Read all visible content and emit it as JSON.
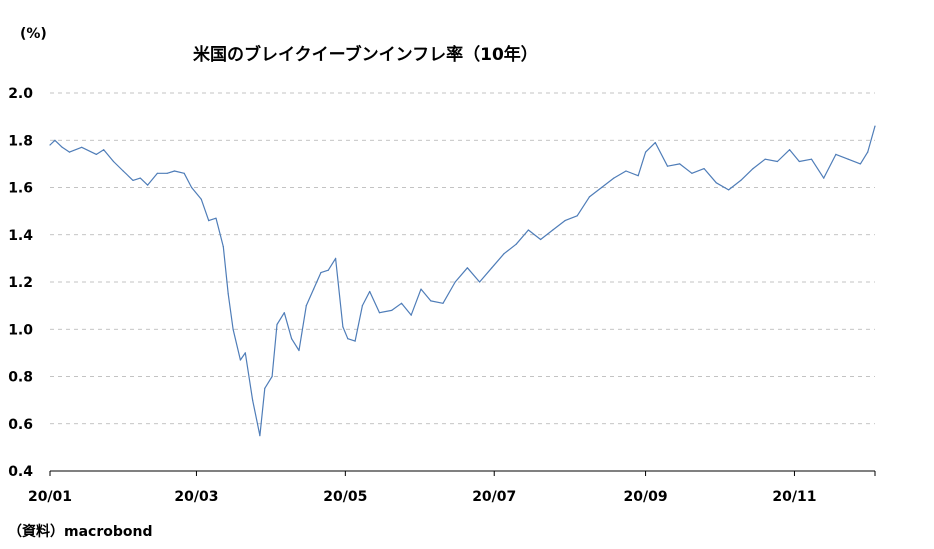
{
  "chart_data": {
    "type": "line",
    "title": "米国のブレイクイーブンインフレ率（10年）",
    "unit_label": "(%)",
    "source": "（資料）macrobond",
    "ylim": [
      0.4,
      2.0
    ],
    "y_ticks": [
      "0.4",
      "0.6",
      "0.8",
      "1.0",
      "1.2",
      "1.4",
      "1.6",
      "1.8",
      "2.0"
    ],
    "x_ticks": [
      "20/01",
      "20/03",
      "20/05",
      "20/07",
      "20/09",
      "20/11"
    ],
    "x_tick_dates": [
      "2020-01-01",
      "2020-03-01",
      "2020-05-01",
      "2020-07-01",
      "2020-09-01",
      "2020-11-01"
    ],
    "xlim": [
      "2020-01-01",
      "2020-12-04"
    ],
    "grid": true,
    "line_color": "#4f7db8",
    "series": [
      {
        "x": [
          "2020-01-01",
          "2020-01-03",
          "2020-01-06",
          "2020-01-09",
          "2020-01-14",
          "2020-01-20",
          "2020-01-23",
          "2020-01-27",
          "2020-01-31",
          "2020-02-04",
          "2020-02-07",
          "2020-02-10",
          "2020-02-14",
          "2020-02-18",
          "2020-02-21",
          "2020-02-25",
          "2020-02-28",
          "2020-03-03",
          "2020-03-06",
          "2020-03-09",
          "2020-03-12",
          "2020-03-14",
          "2020-03-16",
          "2020-03-19",
          "2020-03-21",
          "2020-03-24",
          "2020-03-27",
          "2020-03-29",
          "2020-04-01",
          "2020-04-03",
          "2020-04-06",
          "2020-04-09",
          "2020-04-12",
          "2020-04-15",
          "2020-04-18",
          "2020-04-21",
          "2020-04-24",
          "2020-04-27",
          "2020-04-30",
          "2020-05-02",
          "2020-05-05",
          "2020-05-08",
          "2020-05-11",
          "2020-05-15",
          "2020-05-20",
          "2020-05-24",
          "2020-05-28",
          "2020-06-01",
          "2020-06-05",
          "2020-06-10",
          "2020-06-15",
          "2020-06-20",
          "2020-06-25",
          "2020-06-30",
          "2020-07-05",
          "2020-07-10",
          "2020-07-15",
          "2020-07-20",
          "2020-07-25",
          "2020-07-30",
          "2020-08-04",
          "2020-08-09",
          "2020-08-14",
          "2020-08-19",
          "2020-08-24",
          "2020-08-29",
          "2020-09-01",
          "2020-09-05",
          "2020-09-10",
          "2020-09-15",
          "2020-09-20",
          "2020-09-25",
          "2020-09-30",
          "2020-10-05",
          "2020-10-10",
          "2020-10-15",
          "2020-10-20",
          "2020-10-25",
          "2020-10-30",
          "2020-11-03",
          "2020-11-08",
          "2020-11-13",
          "2020-11-18",
          "2020-11-23",
          "2020-11-28",
          "2020-12-01",
          "2020-12-04"
        ],
        "y": [
          1.78,
          1.8,
          1.77,
          1.75,
          1.77,
          1.74,
          1.76,
          1.71,
          1.67,
          1.63,
          1.64,
          1.61,
          1.66,
          1.66,
          1.67,
          1.66,
          1.6,
          1.55,
          1.46,
          1.47,
          1.35,
          1.15,
          1.0,
          0.87,
          0.9,
          0.7,
          0.55,
          0.75,
          0.8,
          1.02,
          1.07,
          0.96,
          0.91,
          1.1,
          1.17,
          1.24,
          1.25,
          1.3,
          1.01,
          0.96,
          0.95,
          1.1,
          1.16,
          1.07,
          1.08,
          1.11,
          1.06,
          1.17,
          1.12,
          1.11,
          1.2,
          1.26,
          1.2,
          1.26,
          1.32,
          1.36,
          1.42,
          1.38,
          1.42,
          1.46,
          1.48,
          1.56,
          1.6,
          1.64,
          1.67,
          1.65,
          1.75,
          1.79,
          1.69,
          1.7,
          1.66,
          1.68,
          1.62,
          1.59,
          1.63,
          1.68,
          1.72,
          1.71,
          1.76,
          1.71,
          1.72,
          1.64,
          1.74,
          1.72,
          1.7,
          1.75,
          1.86
        ]
      }
    ]
  }
}
